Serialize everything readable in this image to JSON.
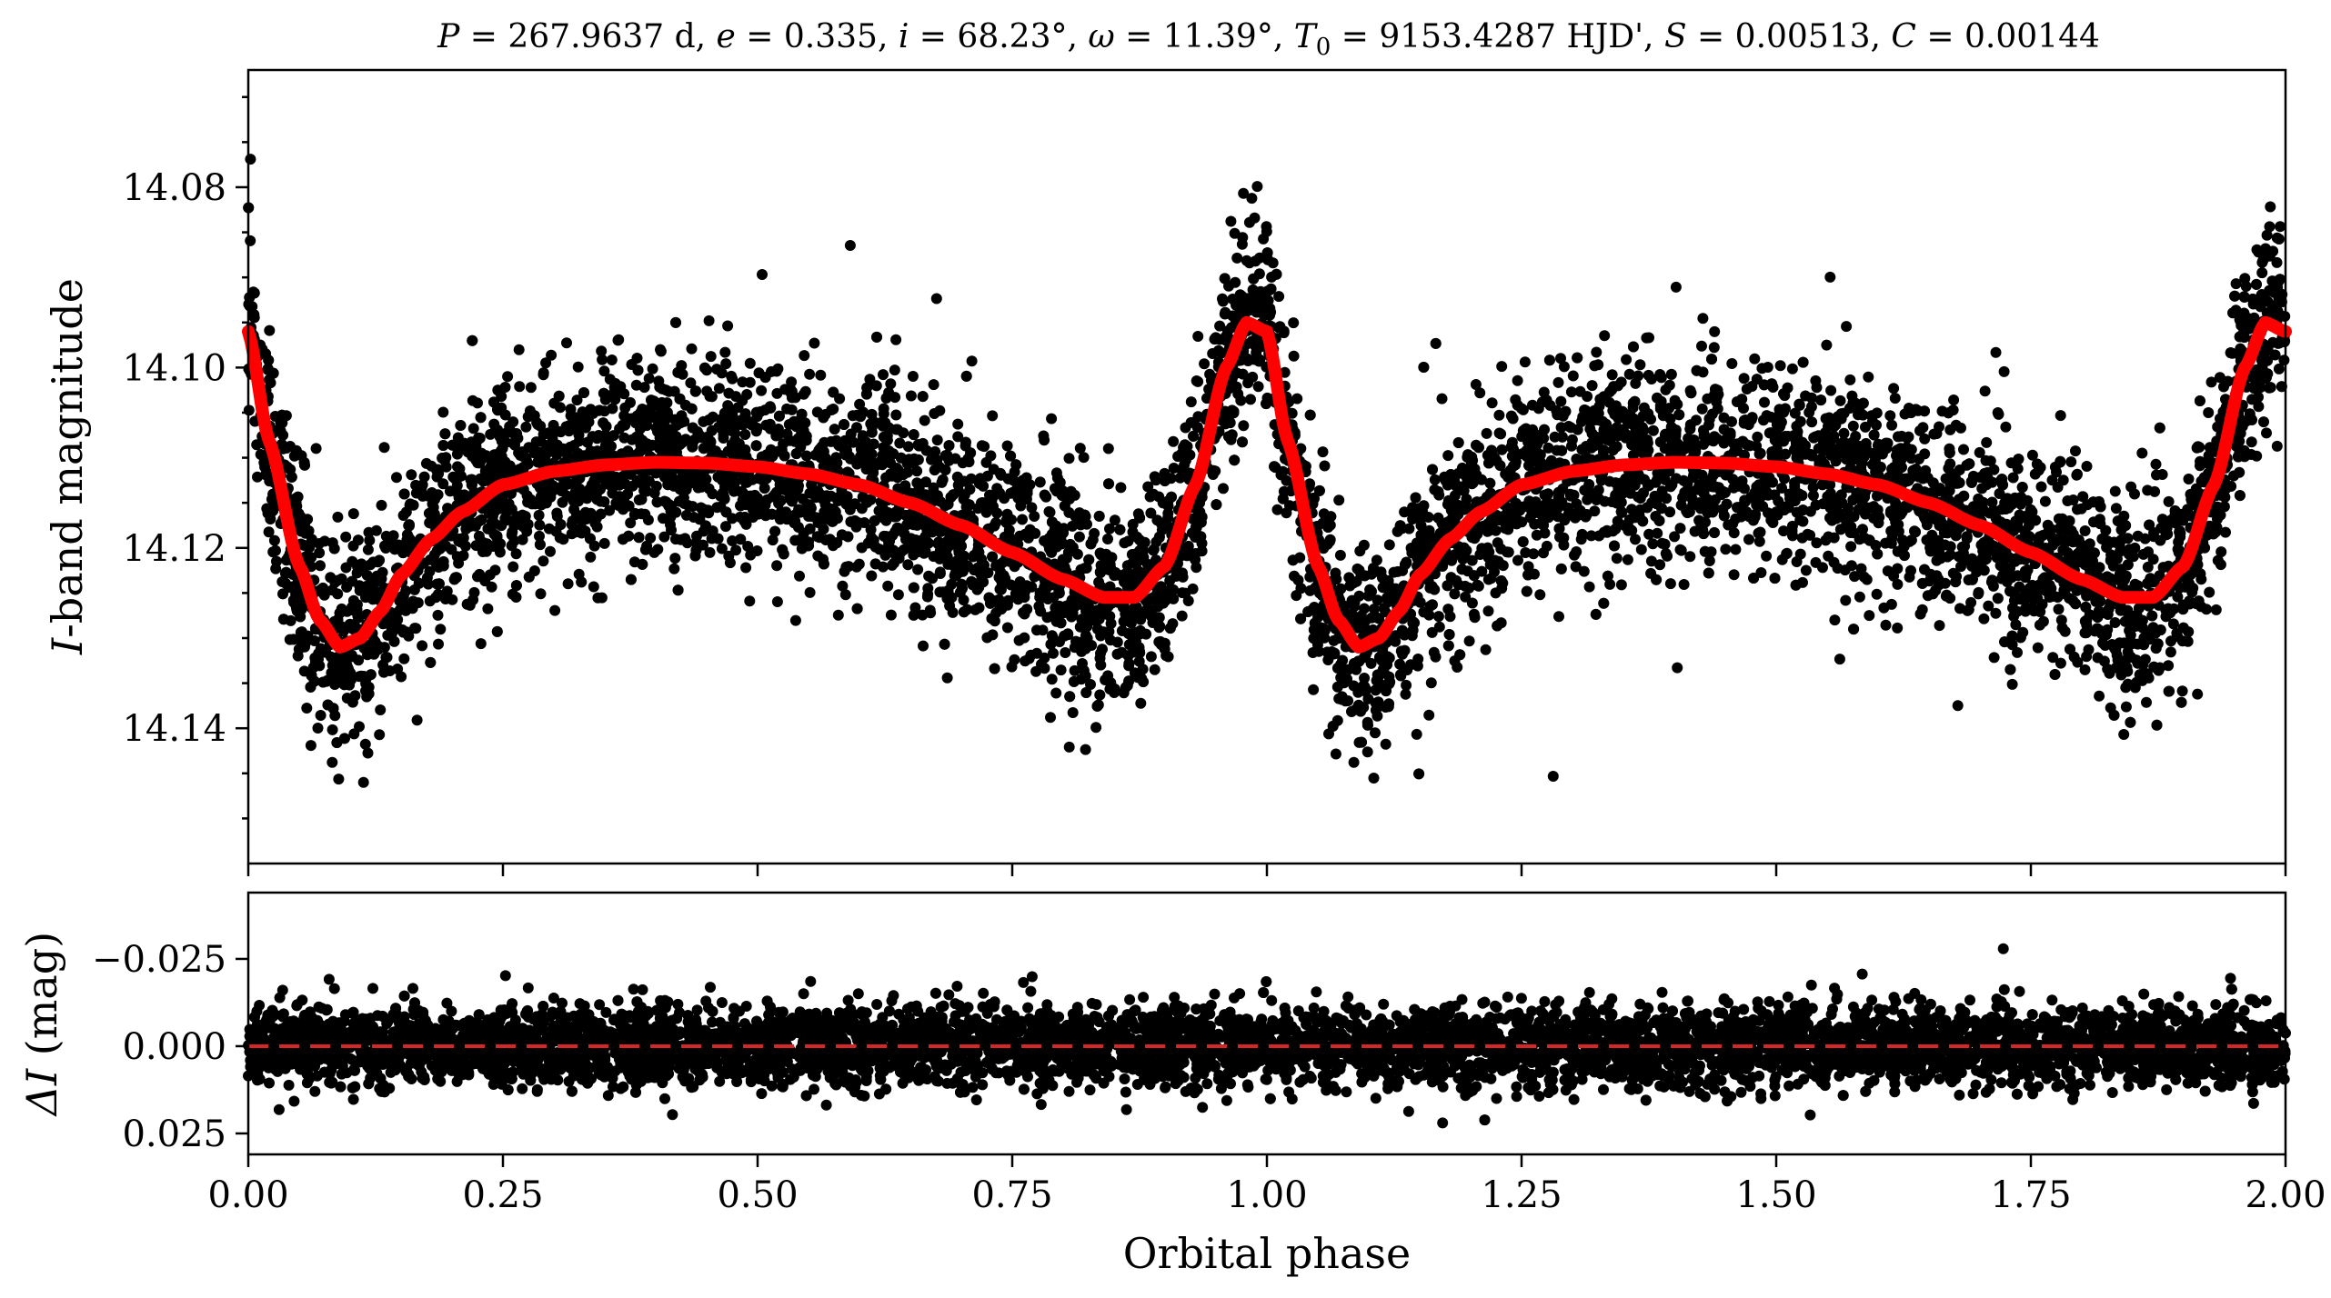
{
  "chart_data": [
    {
      "type": "scatter",
      "title": "P = 267.9637 d, e = 0.335, i = 68.23°, ω = 11.39°, T0 = 9153.4287 HJD', S = 0.00513, C = 0.00144",
      "title_parts": {
        "P_sym": "P",
        "P_val": " = 267.9637 d, ",
        "e_sym": "e",
        "e_val": " = 0.335, ",
        "i_sym": "i",
        "i_val": " = 68.23°, ",
        "w_sym": "ω",
        "w_val": " = 11.39°, ",
        "T_sym": "T",
        "T_sub": "0",
        "T_val": " = 9153.4287 HJD', ",
        "S_sym": "S",
        "S_val": " = 0.00513, ",
        "C_sym": "C",
        "C_val": " = 0.00144"
      },
      "xlabel": "",
      "ylabel": "I-band magnitude",
      "ylabel_parts": {
        "sym": "I",
        "rest": "-band magnitude"
      },
      "xlim": [
        0.0,
        2.0
      ],
      "ylim": [
        14.155,
        14.067
      ],
      "y_inverted": true,
      "yticks": [
        14.08,
        14.1,
        14.12,
        14.14
      ],
      "ytick_labels": [
        "14.08",
        "14.10",
        "14.12",
        "14.14"
      ],
      "grid": false,
      "legend": null,
      "series": [
        {
          "style": "points",
          "color": "#000000",
          "model_x": [
            0.0,
            0.02,
            0.05,
            0.07,
            0.09,
            0.11,
            0.13,
            0.15,
            0.18,
            0.21,
            0.25,
            0.3,
            0.35,
            0.4,
            0.45,
            0.5,
            0.55,
            0.6,
            0.65,
            0.7,
            0.75,
            0.8,
            0.84,
            0.87,
            0.9,
            0.93,
            0.96,
            0.98,
            1.0
          ],
          "model_y": [
            14.096,
            14.108,
            14.122,
            14.128,
            14.131,
            14.13,
            14.127,
            14.123,
            14.119,
            14.116,
            14.113,
            14.1115,
            14.1108,
            14.1105,
            14.1106,
            14.111,
            14.1118,
            14.113,
            14.115,
            14.1175,
            14.1205,
            14.1235,
            14.1255,
            14.1255,
            14.122,
            14.113,
            14.1,
            14.095,
            14.096
          ],
          "scatter_sd": 0.0055,
          "periodic": true,
          "n_points": 7000
        },
        {
          "style": "line",
          "color": "#ff0000",
          "description_key": "model",
          "x_from": "series.0.model_x",
          "y_from": "series.0.model_y"
        }
      ]
    },
    {
      "type": "scatter",
      "xlabel": "Orbital phase",
      "ylabel": "ΔI (mag)",
      "ylabel_parts": {
        "sym": "ΔI",
        "rest": " (mag)"
      },
      "xlim": [
        0.0,
        2.0
      ],
      "ylim": [
        0.031,
        -0.044
      ],
      "y_inverted": true,
      "xticks": [
        0.0,
        0.25,
        0.5,
        0.75,
        1.0,
        1.25,
        1.5,
        1.75,
        2.0
      ],
      "xtick_labels": [
        "0.00",
        "0.25",
        "0.50",
        "0.75",
        "1.00",
        "1.25",
        "1.50",
        "1.75",
        "2.00"
      ],
      "yticks": [
        -0.025,
        0.0,
        0.025
      ],
      "ytick_labels": [
        "−0.025",
        "0.000",
        "0.025"
      ],
      "grid": false,
      "series": [
        {
          "style": "points",
          "color": "#000000",
          "residual_sd": 0.0055,
          "n_points": 7000
        },
        {
          "style": "dashed-line",
          "color": "#d62728",
          "y": 0.0
        }
      ]
    }
  ]
}
